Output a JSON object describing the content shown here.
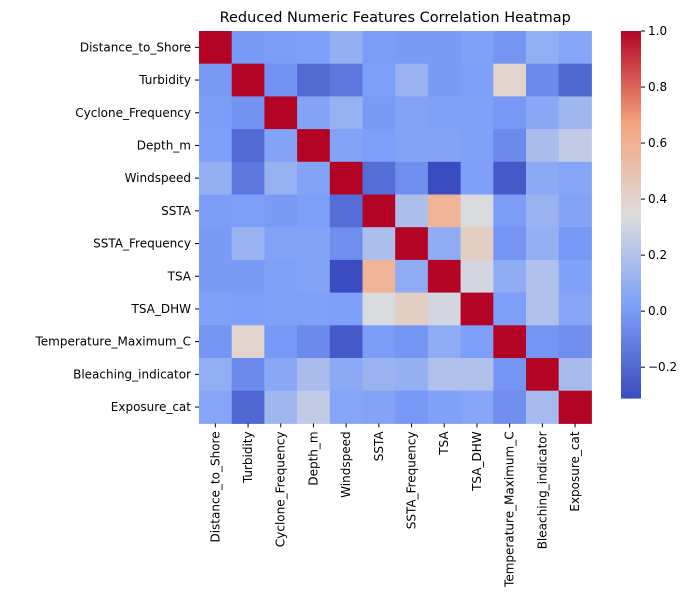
{
  "chart_data": {
    "type": "heatmap",
    "title": "Reduced Numeric Features Correlation Heatmap",
    "colormap": "coolwarm",
    "labels": [
      "Distance_to_Shore",
      "Turbidity",
      "Cyclone_Frequency",
      "Depth_m",
      "Windspeed",
      "SSTA",
      "SSTA_Frequency",
      "TSA",
      "TSA_DHW",
      "Temperature_Maximum_C",
      "Bleaching_indicator",
      "Exposure_cat"
    ],
    "matrix": [
      [
        1.0,
        0.0,
        0.01,
        0.02,
        0.1,
        0.01,
        0.0,
        0.0,
        0.03,
        -0.02,
        0.09,
        0.05
      ],
      [
        0.0,
        1.0,
        -0.03,
        -0.19,
        -0.14,
        0.02,
        0.12,
        0.0,
        0.02,
        0.4,
        -0.06,
        -0.2
      ],
      [
        0.01,
        -0.03,
        1.0,
        0.04,
        0.11,
        0.0,
        0.04,
        0.03,
        0.03,
        -0.01,
        0.06,
        0.14
      ],
      [
        0.02,
        -0.19,
        0.04,
        1.0,
        0.04,
        0.02,
        0.04,
        0.04,
        0.03,
        -0.06,
        0.17,
        0.25
      ],
      [
        0.1,
        -0.14,
        0.11,
        0.04,
        1.0,
        -0.18,
        -0.05,
        -0.31,
        0.02,
        -0.26,
        0.07,
        0.05
      ],
      [
        0.01,
        0.02,
        0.0,
        0.02,
        -0.18,
        1.0,
        0.18,
        0.58,
        0.33,
        0.01,
        0.12,
        0.04
      ],
      [
        0.0,
        0.12,
        0.04,
        0.04,
        -0.05,
        0.18,
        1.0,
        0.08,
        0.43,
        -0.02,
        0.1,
        -0.01
      ],
      [
        0.0,
        0.0,
        0.03,
        0.04,
        -0.31,
        0.58,
        0.08,
        1.0,
        0.31,
        0.08,
        0.19,
        0.03
      ],
      [
        0.03,
        0.02,
        0.03,
        0.03,
        0.02,
        0.33,
        0.43,
        0.31,
        1.0,
        0.02,
        0.19,
        0.05
      ],
      [
        -0.02,
        0.4,
        -0.01,
        -0.06,
        -0.26,
        0.01,
        -0.02,
        0.08,
        0.02,
        1.0,
        -0.02,
        -0.05
      ],
      [
        0.09,
        -0.06,
        0.06,
        0.17,
        0.07,
        0.12,
        0.1,
        0.19,
        0.19,
        -0.02,
        1.0,
        0.16
      ],
      [
        0.05,
        -0.2,
        0.14,
        0.25,
        0.05,
        0.04,
        -0.01,
        0.03,
        0.05,
        -0.05,
        0.16,
        1.0
      ]
    ],
    "colorbar": {
      "vmin": -0.31,
      "vmax": 1.0,
      "ticks": [
        1.0,
        0.8,
        0.6,
        0.4,
        0.2,
        0.0,
        -0.2
      ],
      "tick_labels": [
        "1.0",
        "0.8",
        "0.6",
        "0.4",
        "0.2",
        "0.0",
        "−0.2"
      ]
    }
  }
}
